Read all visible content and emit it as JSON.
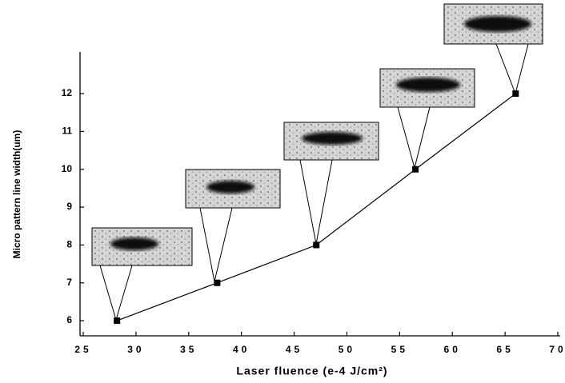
{
  "chart_data": {
    "type": "line",
    "x_label": "Laser fluence (e-4 J/cm²)",
    "y_label": "Micro pattern line width(um)",
    "x": [
      28.2,
      37.7,
      47.1,
      56.5,
      66.0
    ],
    "series": [
      {
        "color": "#000000",
        "values": [
          6,
          7,
          8,
          10,
          12
        ]
      }
    ],
    "xlim": [
      25,
      70
    ],
    "xticks": [
      25,
      30,
      35,
      40,
      45,
      50,
      55,
      60,
      65,
      70
    ],
    "ylim": [
      5.6,
      13.1
    ],
    "yticks": [
      6,
      7,
      8,
      9,
      10,
      11,
      12
    ],
    "grid": false
  }
}
